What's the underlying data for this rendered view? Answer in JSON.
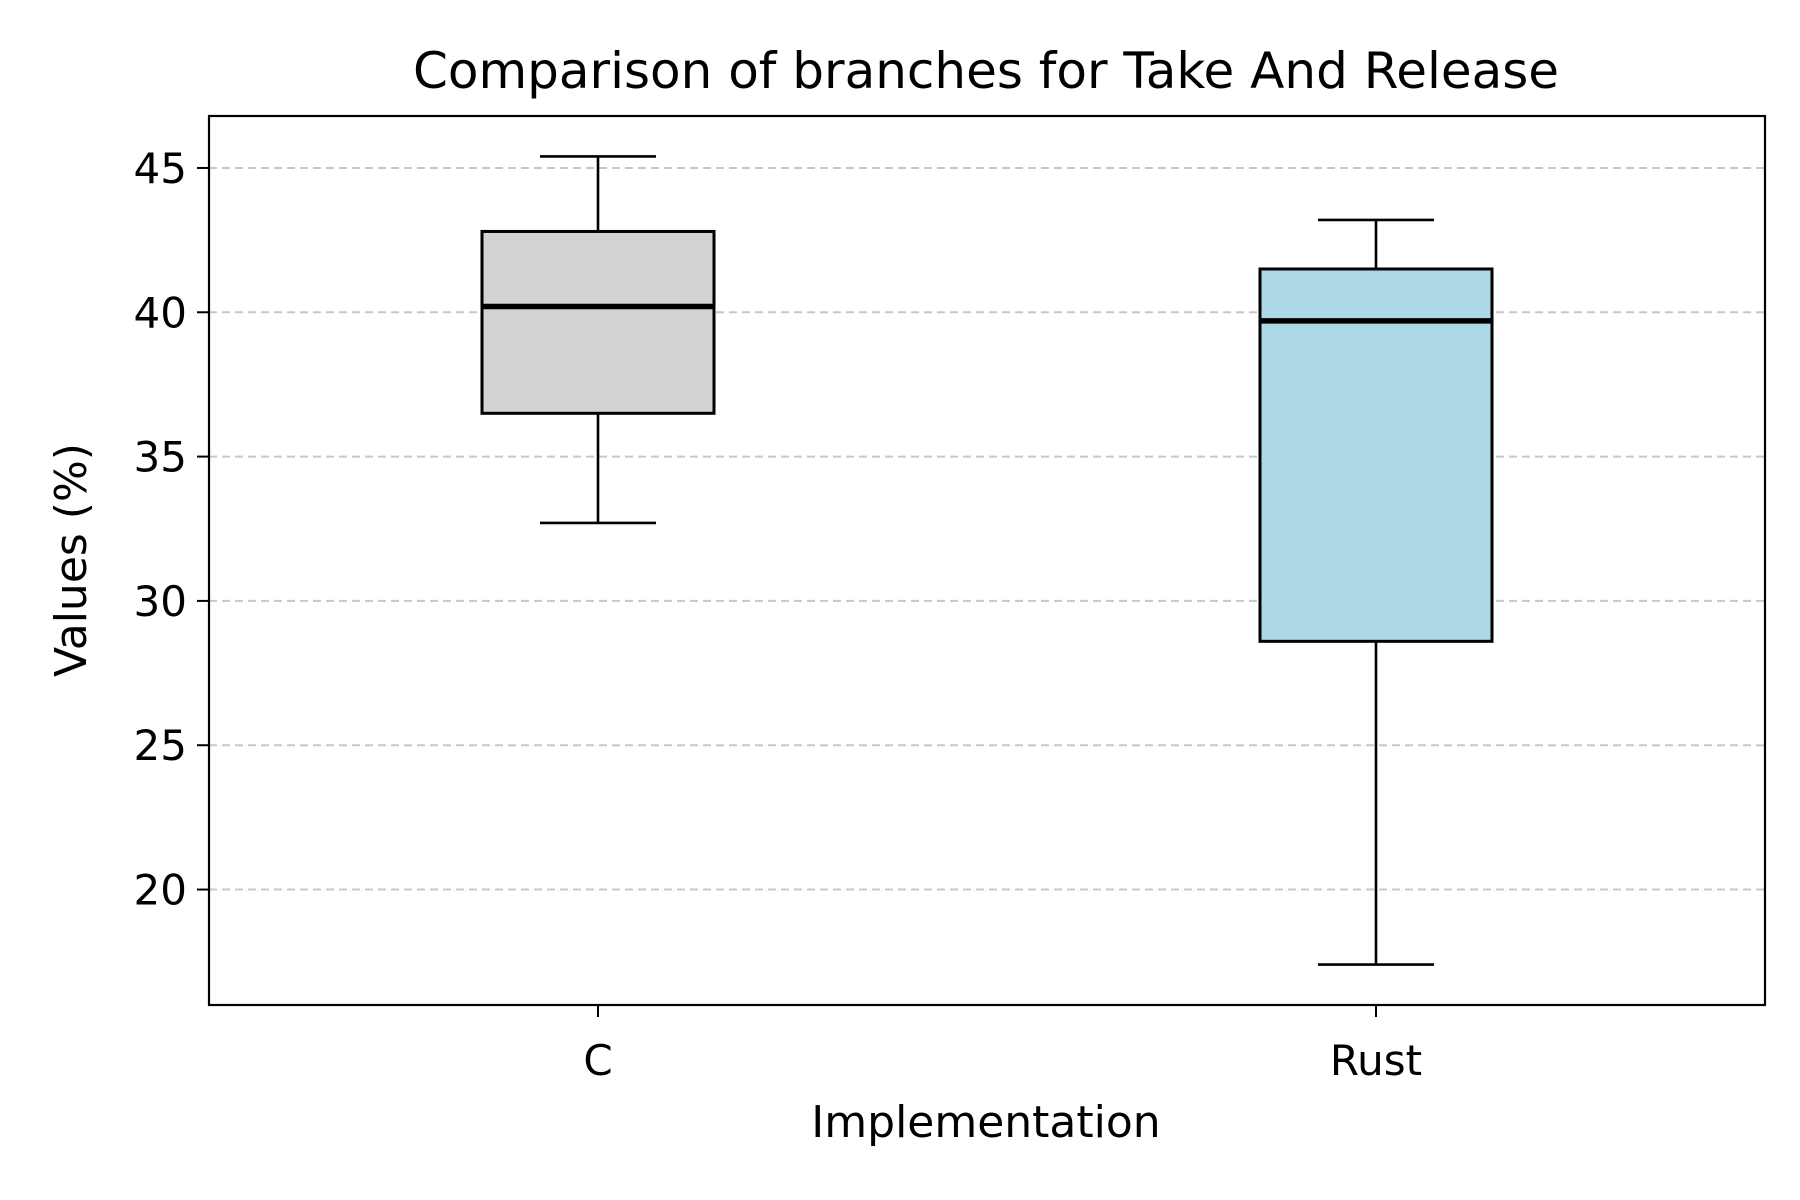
{
  "chart_data": {
    "type": "box",
    "title": "Comparison of branches for Take And Release",
    "xlabel": "Implementation",
    "ylabel": "Values (%)",
    "categories": [
      "C",
      "Rust"
    ],
    "boxes": [
      {
        "category": "C",
        "whisker_low": 32.7,
        "q1": 36.5,
        "median": 40.2,
        "q3": 42.8,
        "whisker_high": 45.4,
        "color": "#d3d3d3"
      },
      {
        "category": "Rust",
        "whisker_low": 17.4,
        "q1": 28.6,
        "median": 39.7,
        "q3": 41.5,
        "whisker_high": 43.2,
        "color": "#add8e6"
      }
    ],
    "yticks": [
      20,
      25,
      30,
      35,
      40,
      45
    ],
    "ylim": [
      16.0,
      46.8
    ],
    "grid": "y-dashed",
    "legend": "none"
  }
}
